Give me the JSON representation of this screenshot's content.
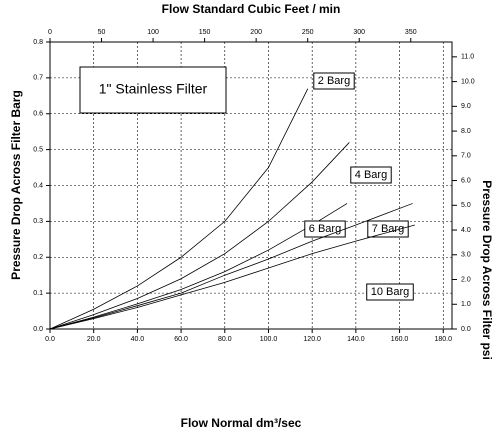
{
  "chart_data": {
    "type": "line",
    "title": "1\" Stainless Filter",
    "x_label": "Flow Normal dm³/sec",
    "x2_label": "Flow Standard Cubic Feet / min",
    "y_label": "Pressure Drop Across Filter Barg",
    "y2_label": "Pressure Drop Across Filter psi",
    "xlim": [
      0,
      184
    ],
    "xticks": [
      {
        "value": 0,
        "label": "0.0"
      },
      {
        "value": 20,
        "label": "20.0"
      },
      {
        "value": 40,
        "label": "40.0"
      },
      {
        "value": 60,
        "label": "60.0"
      },
      {
        "value": 80,
        "label": "80.0"
      },
      {
        "value": 100,
        "label": "100.0"
      },
      {
        "value": 120,
        "label": "120.0"
      },
      {
        "value": 140,
        "label": "140.0"
      },
      {
        "value": 160,
        "label": "160.0"
      },
      {
        "value": 180,
        "label": "180.0"
      }
    ],
    "x2lim": [
      0,
      390
    ],
    "x2ticks": [
      0,
      50,
      100,
      150,
      200,
      250,
      300,
      350
    ],
    "ylim": [
      0,
      0.8
    ],
    "yticks": [
      {
        "value": 0,
        "label": "0.0"
      },
      0.1,
      0.2,
      0.3,
      0.4,
      0.5,
      0.6,
      0.7,
      0.8
    ],
    "y2lim": [
      0,
      11.6
    ],
    "y2ticks": [
      {
        "value": 0,
        "label": "0.0"
      },
      {
        "value": 1,
        "label": "1.0"
      },
      {
        "value": 2,
        "label": "2.0"
      },
      {
        "value": 3,
        "label": "3.0"
      },
      {
        "value": 4,
        "label": "4.0"
      },
      {
        "value": 5,
        "label": "5.0"
      },
      {
        "value": 6,
        "label": "6.0"
      },
      {
        "value": 7,
        "label": "7.0"
      },
      {
        "value": 8,
        "label": "8.0"
      },
      {
        "value": 9,
        "label": "9.0"
      },
      {
        "value": 10,
        "label": "10.0"
      },
      {
        "value": 11,
        "label": "11.0"
      }
    ],
    "grid": true,
    "series": [
      {
        "name": "2 Barg",
        "color": "#000000",
        "x": [
          0,
          20,
          40,
          60,
          80,
          100,
          118
        ],
        "values": [
          0,
          0.055,
          0.12,
          0.2,
          0.3,
          0.45,
          0.67
        ]
      },
      {
        "name": "4 Barg",
        "color": "#000000",
        "x": [
          0,
          20,
          40,
          60,
          80,
          100,
          120,
          137
        ],
        "values": [
          0,
          0.04,
          0.085,
          0.14,
          0.21,
          0.3,
          0.41,
          0.52
        ]
      },
      {
        "name": "6 Barg",
        "color": "#000000",
        "x": [
          0,
          20,
          40,
          60,
          80,
          100,
          120,
          136
        ],
        "values": [
          0,
          0.033,
          0.07,
          0.11,
          0.16,
          0.22,
          0.29,
          0.35
        ]
      },
      {
        "name": "7 Barg",
        "color": "#000000",
        "x": [
          0,
          20,
          40,
          60,
          80,
          100,
          120,
          140,
          166
        ],
        "values": [
          0,
          0.031,
          0.065,
          0.1,
          0.15,
          0.195,
          0.245,
          0.29,
          0.35
        ]
      },
      {
        "name": "10 Barg",
        "color": "#000000",
        "x": [
          0,
          20,
          40,
          60,
          80,
          100,
          120,
          140,
          167
        ],
        "values": [
          0,
          0.029,
          0.06,
          0.095,
          0.13,
          0.17,
          0.21,
          0.245,
          0.29
        ]
      }
    ]
  }
}
